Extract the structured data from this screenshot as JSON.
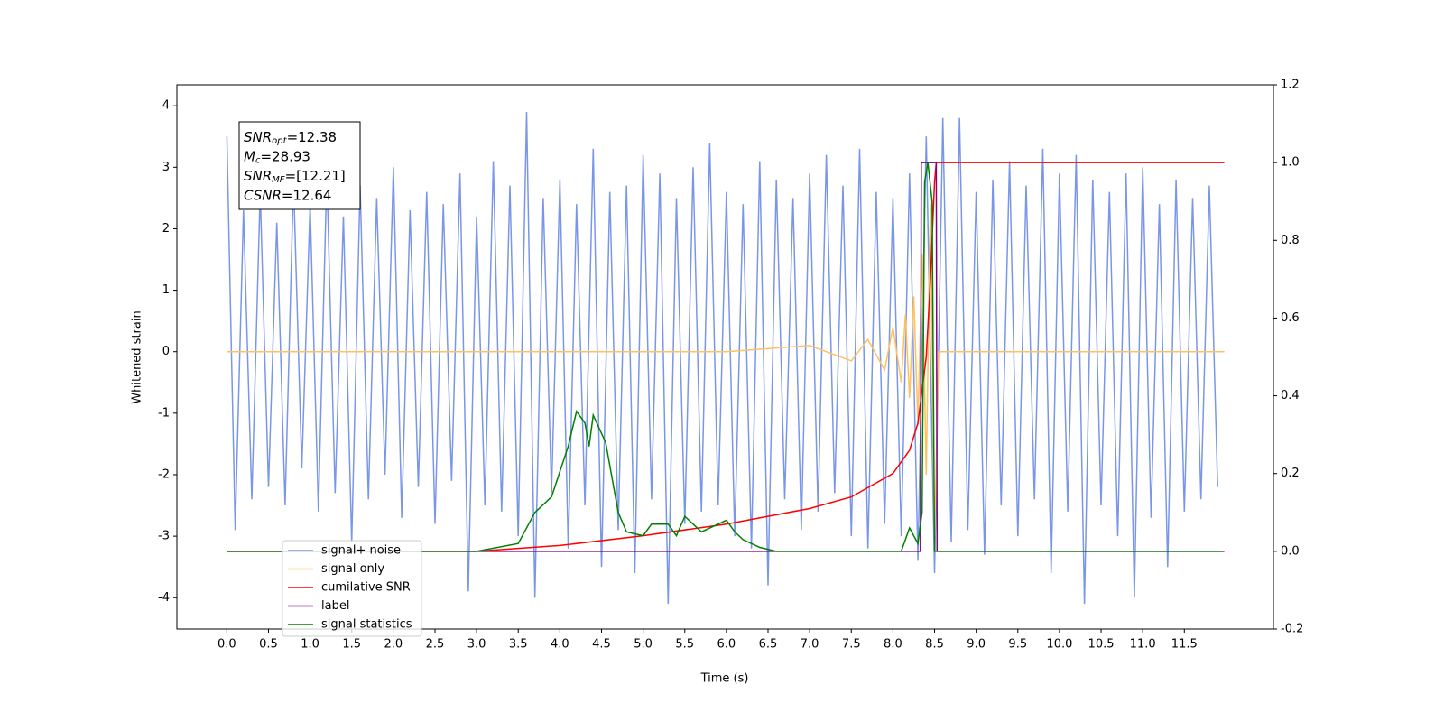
{
  "chart_data": {
    "type": "line",
    "xlabel": "Time (s)",
    "ylabel": "Whitened strain",
    "xlim": [
      -0.6,
      12.57
    ],
    "ylim": [
      -4.51,
      4.34
    ],
    "y2lim": [
      -0.2,
      1.2
    ],
    "xticks": [
      {
        "value": 0,
        "label": "0.0"
      },
      0.5,
      {
        "value": 1,
        "label": "1.0"
      },
      1.5,
      {
        "value": 2,
        "label": "2.0"
      },
      2.5,
      {
        "value": 3,
        "label": "3.0"
      },
      3.5,
      {
        "value": 4,
        "label": "4.0"
      },
      4.5,
      {
        "value": 5,
        "label": "5.0"
      },
      5.5,
      {
        "value": 6,
        "label": "6.0"
      },
      6.5,
      {
        "value": 7,
        "label": "7.0"
      },
      7.5,
      {
        "value": 8,
        "label": "8.0"
      },
      8.5,
      {
        "value": 9,
        "label": "9.0"
      },
      9.5,
      {
        "value": 10,
        "label": "10.0"
      },
      10.5,
      {
        "value": 11,
        "label": "11.0"
      },
      11.5
    ],
    "yticks": [
      -4,
      -3,
      -2,
      -1,
      0,
      1,
      2,
      3,
      4
    ],
    "y2ticks": [
      -0.2,
      {
        "value": 0,
        "label": "0.0"
      },
      0.2,
      0.4,
      0.6,
      0.8,
      {
        "value": 1,
        "label": "1.0"
      },
      1.2
    ],
    "legend": "lower left",
    "annotation": [
      {
        "base": "SNR",
        "sub": "opt",
        "text": "=12.38"
      },
      {
        "base": "M",
        "sub": "c",
        "text": "=28.93"
      },
      {
        "base": "SNR",
        "sub": "MF",
        "text": "=[12.21]"
      },
      {
        "base": "CSNR",
        "sub": null,
        "text": "=12.64"
      }
    ],
    "series": [
      {
        "name": "signal+ noise",
        "color": "#7a96e8",
        "x": [
          0.0,
          0.1,
          0.2,
          0.3,
          0.4,
          0.5,
          0.6,
          0.7,
          0.8,
          0.9,
          1.0,
          1.1,
          1.2,
          1.3,
          1.4,
          1.5,
          1.6,
          1.7,
          1.8,
          1.9,
          2.0,
          2.1,
          2.2,
          2.3,
          2.4,
          2.5,
          2.6,
          2.7,
          2.8,
          2.9,
          3.0,
          3.1,
          3.2,
          3.3,
          3.4,
          3.5,
          3.6,
          3.7,
          3.8,
          3.9,
          4.0,
          4.1,
          4.2,
          4.3,
          4.4,
          4.5,
          4.6,
          4.7,
          4.8,
          4.9,
          5.0,
          5.1,
          5.2,
          5.3,
          5.4,
          5.5,
          5.6,
          5.7,
          5.8,
          5.9,
          6.0,
          6.1,
          6.2,
          6.3,
          6.4,
          6.5,
          6.6,
          6.7,
          6.8,
          6.9,
          7.0,
          7.1,
          7.2,
          7.3,
          7.4,
          7.5,
          7.6,
          7.7,
          7.8,
          7.9,
          8.0,
          8.1,
          8.2,
          8.3,
          8.4,
          8.5,
          8.6,
          8.7,
          8.8,
          8.9,
          9.0,
          9.1,
          9.2,
          9.3,
          9.4,
          9.5,
          9.6,
          9.7,
          9.8,
          9.9,
          10.0,
          10.1,
          10.2,
          10.3,
          10.4,
          10.5,
          10.6,
          10.7,
          10.8,
          10.9,
          11.0,
          11.1,
          11.2,
          11.3,
          11.4,
          11.5,
          11.6,
          11.7,
          11.8,
          11.9
        ],
        "values": [
          3.5,
          -2.9,
          2.3,
          -2.4,
          2.6,
          -2.2,
          2.1,
          -2.5,
          2.8,
          -1.9,
          2.4,
          -2.6,
          2.9,
          -2.3,
          2.2,
          -3.1,
          2.7,
          -2.4,
          2.5,
          -2.0,
          3.0,
          -2.7,
          2.3,
          -2.2,
          2.6,
          -2.8,
          2.4,
          -2.1,
          2.9,
          -3.9,
          2.2,
          -2.5,
          3.1,
          -2.6,
          2.7,
          -3.0,
          3.9,
          -4.0,
          2.5,
          -2.3,
          2.8,
          -3.2,
          2.4,
          -2.5,
          3.3,
          -3.5,
          2.6,
          -2.9,
          2.7,
          -3.6,
          3.2,
          -2.4,
          2.9,
          -4.1,
          2.5,
          -2.8,
          3.0,
          -2.6,
          3.4,
          -2.5,
          2.6,
          -3.0,
          2.4,
          -3.2,
          3.1,
          -3.8,
          2.8,
          -2.4,
          2.5,
          -2.9,
          2.9,
          -2.6,
          3.2,
          -2.3,
          2.7,
          -3.0,
          3.3,
          -3.2,
          2.6,
          -2.8,
          2.5,
          -3.0,
          2.9,
          -3.4,
          3.5,
          -3.6,
          3.8,
          -3.1,
          3.8,
          -2.9,
          2.6,
          -3.3,
          2.8,
          -2.5,
          3.1,
          -3.0,
          2.7,
          -2.4,
          3.3,
          -3.6,
          2.9,
          -2.6,
          3.2,
          -4.1,
          2.8,
          -2.5,
          2.6,
          -3.0,
          2.9,
          -4.0,
          3.0,
          -2.7,
          2.4,
          -3.5,
          2.8,
          -2.6,
          2.5,
          -2.4,
          2.7,
          -2.2
        ]
      },
      {
        "name": "signal only",
        "color": "#ffc060",
        "x": [
          0,
          6.0,
          7.0,
          7.5,
          7.7,
          7.9,
          8.0,
          8.1,
          8.15,
          8.2,
          8.25,
          8.3,
          8.35,
          8.4,
          8.45,
          8.5,
          8.55,
          11.98
        ],
        "values": [
          0,
          0,
          0.1,
          -0.15,
          0.2,
          -0.3,
          0.4,
          -0.5,
          0.6,
          -0.75,
          0.9,
          -1.2,
          1.6,
          -2.0,
          2.4,
          -3.0,
          0,
          0
        ]
      },
      {
        "name": "cumilative SNR",
        "color": "#ff0000",
        "axis": "y2",
        "x": [
          0,
          3.0,
          4.0,
          5.0,
          6.0,
          7.0,
          7.5,
          8.0,
          8.2,
          8.3,
          8.4,
          8.45,
          8.5,
          8.52,
          11.98
        ],
        "values": [
          0,
          0,
          0.015,
          0.04,
          0.07,
          0.11,
          0.14,
          0.2,
          0.26,
          0.33,
          0.5,
          0.7,
          0.95,
          1.0,
          1.0
        ]
      },
      {
        "name": "label",
        "color": "#800080",
        "axis": "y2",
        "x": [
          0,
          8.33,
          8.34,
          8.52,
          8.53,
          11.98
        ],
        "values": [
          0,
          0,
          1,
          1,
          0,
          0
        ]
      },
      {
        "name": "signal statistics",
        "color": "#008000",
        "axis": "y2",
        "x": [
          0,
          3.0,
          3.5,
          3.7,
          3.9,
          4.1,
          4.2,
          4.3,
          4.35,
          4.4,
          4.55,
          4.7,
          4.8,
          5.0,
          5.1,
          5.3,
          5.4,
          5.5,
          5.7,
          6.0,
          6.1,
          6.2,
          6.4,
          6.6,
          8.1,
          8.2,
          8.3,
          8.35,
          8.38,
          8.42,
          8.47,
          8.5,
          11.95
        ],
        "values": [
          0,
          0,
          0.02,
          0.1,
          0.14,
          0.27,
          0.36,
          0.33,
          0.27,
          0.35,
          0.28,
          0.1,
          0.05,
          0.04,
          0.07,
          0.07,
          0.04,
          0.09,
          0.05,
          0.08,
          0.05,
          0.03,
          0.01,
          0,
          0,
          0.06,
          0.02,
          0.1,
          0.95,
          1.0,
          0.9,
          0,
          0
        ]
      }
    ]
  }
}
